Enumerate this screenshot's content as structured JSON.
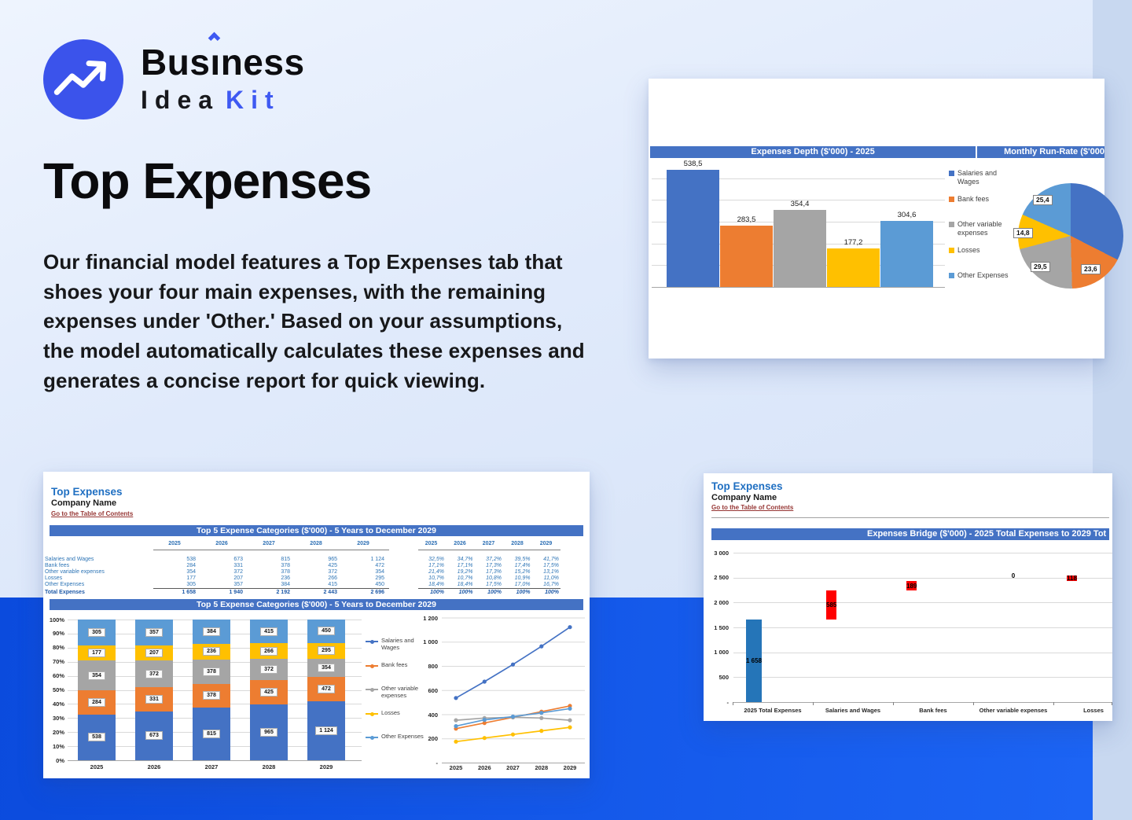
{
  "brand": {
    "word_pre": "Bus",
    "word_i": "ı",
    "word_post": "ness",
    "line2_black": "Idea",
    "line2_blue": "Kit"
  },
  "hero": {
    "title": "Top Expenses",
    "paragraph": "Our financial model features a Top Expenses tab that shoes your four main expenses, with the remaining expenses under 'Other.' Based on your assumptions, the model automatically calculates these expenses and generates a concise report for quick viewing."
  },
  "legend_labels": [
    "Salaries and Wages",
    "Bank fees",
    "Other variable expenses",
    "Losses",
    "Other Expenses"
  ],
  "sheet_top_right": {
    "depth_title": "Expenses Depth ($'000) - 2025",
    "runrate_title": "Monthly Run-Rate ($'000"
  },
  "sheet_bottom_left": {
    "title": "Top Expenses",
    "company": "Company Name",
    "toc_link": "Go to the Table of Contents",
    "table_title": "Top 5 Expense Categories ($'000) - 5 Years to December 2029",
    "chart_title": "Top 5 Expense Categories ($'000) - 5 Years to December 2029",
    "years": [
      "2025",
      "2026",
      "2027",
      "2028",
      "2029"
    ],
    "rows": [
      {
        "label": "Salaries and Wages",
        "values": [
          "538",
          "673",
          "815",
          "965",
          "1 124"
        ],
        "pcts": [
          "32,5%",
          "34,7%",
          "37,2%",
          "39,5%",
          "41,7%"
        ]
      },
      {
        "label": "Bank fees",
        "values": [
          "284",
          "331",
          "378",
          "425",
          "472"
        ],
        "pcts": [
          "17,1%",
          "17,1%",
          "17,3%",
          "17,4%",
          "17,5%"
        ]
      },
      {
        "label": "Other variable expenses",
        "values": [
          "354",
          "372",
          "378",
          "372",
          "354"
        ],
        "pcts": [
          "21,4%",
          "19,2%",
          "17,3%",
          "15,2%",
          "13,1%"
        ]
      },
      {
        "label": "Losses",
        "values": [
          "177",
          "207",
          "236",
          "266",
          "295"
        ],
        "pcts": [
          "10,7%",
          "10,7%",
          "10,8%",
          "10,9%",
          "11,0%"
        ]
      },
      {
        "label": "Other Expenses",
        "values": [
          "305",
          "357",
          "384",
          "415",
          "450"
        ],
        "pcts": [
          "18,4%",
          "18,4%",
          "17,5%",
          "17,0%",
          "16,7%"
        ]
      }
    ],
    "total_row": {
      "label": "Total Expenses",
      "values": [
        "1 658",
        "1 940",
        "2 192",
        "2 443",
        "2 696"
      ],
      "pcts": [
        "100%",
        "100%",
        "100%",
        "100%",
        "100%"
      ]
    },
    "stacked_y_labels": [
      "100%",
      "90%",
      "80%",
      "70%",
      "60%",
      "50%",
      "40%",
      "30%",
      "20%",
      "10%",
      "0%"
    ],
    "line_y_labels": [
      "1 200",
      "1 000",
      "800",
      "600",
      "400",
      "200",
      "-"
    ]
  },
  "sheet_bottom_right": {
    "title": "Top Expenses",
    "company": "Company Name",
    "toc_link": "Go to the Table of Contents",
    "chart_title": "Expenses Bridge ($'000) - 2025 Total Expenses to 2029 Tot",
    "waterfall_y_labels": [
      "3 000",
      "2 500",
      "2 000",
      "1 500",
      "1 000",
      "500",
      "-"
    ]
  },
  "chart_data": [
    {
      "id": "expenses-depth",
      "type": "bar",
      "title": "Expenses Depth ($'000) - 2025",
      "categories": [
        "Salaries and Wages",
        "Bank fees",
        "Other variable expenses",
        "Losses",
        "Other Expenses"
      ],
      "values": [
        538.5,
        283.5,
        354.4,
        177.2,
        304.6
      ],
      "value_labels": [
        "538,5",
        "283,5",
        "354,4",
        "177,2",
        "304,6"
      ],
      "colors": [
        "#4472C4",
        "#ED7D31",
        "#A5A5A5",
        "#FFC000",
        "#5B9BD5"
      ],
      "ylim": [
        0,
        600
      ],
      "grid": true,
      "legend_position": "right"
    },
    {
      "id": "monthly-run-rate",
      "type": "pie",
      "title": "Monthly Run-Rate ($'000",
      "labels": [
        "Salaries and Wages",
        "Bank fees",
        "Other variable expenses",
        "Losses",
        "Other Expenses"
      ],
      "values": [
        44.9,
        23.6,
        29.5,
        14.8,
        25.4
      ],
      "value_labels": [
        "",
        "23,6",
        "29,5",
        "14,8",
        "25,4"
      ],
      "colors": [
        "#4472C4",
        "#ED7D31",
        "#A5A5A5",
        "#FFC000",
        "#5B9BD5"
      ]
    },
    {
      "id": "top5-stacked",
      "type": "bar",
      "subtype": "percent-stacked",
      "title": "Top 5 Expense Categories ($'000) - 5 Years to December 2029",
      "categories": [
        "2025",
        "2026",
        "2027",
        "2028",
        "2029"
      ],
      "series": [
        {
          "name": "Salaries and Wages",
          "values": [
            538,
            673,
            815,
            965,
            1124
          ],
          "labels": [
            "538",
            "673",
            "815",
            "965",
            "1 124"
          ],
          "color": "#4472C4"
        },
        {
          "name": "Bank fees",
          "values": [
            284,
            331,
            378,
            425,
            472
          ],
          "labels": [
            "284",
            "331",
            "378",
            "425",
            "472"
          ],
          "color": "#ED7D31"
        },
        {
          "name": "Other variable expenses",
          "values": [
            354,
            372,
            378,
            372,
            354
          ],
          "labels": [
            "354",
            "372",
            "378",
            "372",
            "354"
          ],
          "color": "#A5A5A5"
        },
        {
          "name": "Losses",
          "values": [
            177,
            207,
            236,
            266,
            295
          ],
          "labels": [
            "177",
            "207",
            "236",
            "266",
            "295"
          ],
          "color": "#FFC000"
        },
        {
          "name": "Other Expenses",
          "values": [
            305,
            357,
            384,
            415,
            450
          ],
          "labels": [
            "305",
            "357",
            "384",
            "415",
            "450"
          ],
          "color": "#5B9BD5"
        }
      ],
      "ylim_percent": [
        0,
        100
      ],
      "grid": true
    },
    {
      "id": "top5-lines",
      "type": "line",
      "categories": [
        "2025",
        "2026",
        "2027",
        "2028",
        "2029"
      ],
      "series_from": "top5-stacked",
      "ylim": [
        0,
        1200
      ],
      "grid": true
    },
    {
      "id": "expenses-bridge",
      "type": "waterfall",
      "title": "Expenses Bridge ($'000) - 2025 Total Expenses to 2029 Tot",
      "categories": [
        "2025 Total Expenses",
        "Salaries and Wages",
        "Bank fees",
        "Other variable expenses",
        "Losses"
      ],
      "bars": [
        {
          "label": "2025 Total Expenses",
          "start": 0,
          "end": 1658,
          "value_label": "1 658",
          "kind": "total",
          "color": "#2575B8"
        },
        {
          "label": "Salaries and Wages",
          "start": 1658,
          "end": 2243,
          "value_label": "585",
          "kind": "increase",
          "color": "#FF0000"
        },
        {
          "label": "Bank fees",
          "start": 2243,
          "end": 2432,
          "value_label": "189",
          "kind": "increase",
          "color": "#FF0000"
        },
        {
          "label": "Other variable expenses",
          "start": 2432,
          "end": 2432,
          "value_label": "0",
          "kind": "connector",
          "color": "#C5E0B4"
        },
        {
          "label": "Losses",
          "start": 2432,
          "end": 2550,
          "value_label": "118",
          "kind": "increase",
          "color": "#FF0000"
        }
      ],
      "ylim": [
        0,
        3000
      ],
      "grid": true
    }
  ]
}
